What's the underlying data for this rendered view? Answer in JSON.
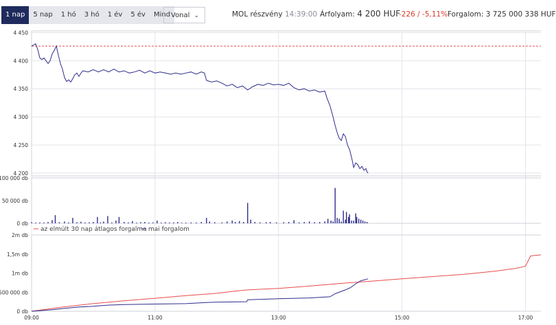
{
  "toolbar": {
    "tabs": [
      {
        "label": "1 nap",
        "active": true
      },
      {
        "label": "5 nap",
        "active": false
      },
      {
        "label": "1 hó",
        "active": false
      },
      {
        "label": "3 hó",
        "active": false
      },
      {
        "label": "1 év",
        "active": false
      },
      {
        "label": "5 év",
        "active": false
      },
      {
        "label": "Mind",
        "active": false
      }
    ],
    "chart_type_select": "Vonal",
    "stock_name": "MOL részvény",
    "time": "14:39:00",
    "price_label": "Árfolyam:",
    "price_value": "4 200 HUF",
    "change": "-226 / -5,11%",
    "volume_label": "Forgalom: 3 725 000 338 HUF"
  },
  "colors": {
    "line": "#2e2c8c",
    "ref": "#e84c4c",
    "grid": "#e3e4ea",
    "negative": "#d63b2a"
  },
  "chart_data": [
    {
      "type": "line",
      "panel": "price",
      "y_ticks": [
        "4 450",
        "4 400",
        "4 350",
        "4 300",
        "4 250",
        "4 200"
      ],
      "y_tick_values": [
        4450,
        4400,
        4350,
        4300,
        4250,
        4200
      ],
      "ylim": [
        4195,
        4453
      ],
      "reference_value": 4426,
      "x_range": [
        "09:00",
        "17:15"
      ],
      "series": [
        {
          "values": [
            [
              "09:00",
              4426
            ],
            [
              "09:02",
              4428
            ],
            [
              "09:04",
              4430
            ],
            [
              "09:06",
              4420
            ],
            [
              "09:08",
              4405
            ],
            [
              "09:10",
              4402
            ],
            [
              "09:12",
              4405
            ],
            [
              "09:14",
              4400
            ],
            [
              "09:16",
              4395
            ],
            [
              "09:18",
              4400
            ],
            [
              "09:20",
              4412
            ],
            [
              "09:22",
              4418
            ],
            [
              "09:24",
              4426
            ],
            [
              "09:26",
              4410
            ],
            [
              "09:28",
              4395
            ],
            [
              "09:30",
              4385
            ],
            [
              "09:32",
              4370
            ],
            [
              "09:34",
              4363
            ],
            [
              "09:36",
              4366
            ],
            [
              "09:38",
              4362
            ],
            [
              "09:40",
              4368
            ],
            [
              "09:42",
              4375
            ],
            [
              "09:44",
              4378
            ],
            [
              "09:46",
              4372
            ],
            [
              "09:48",
              4378
            ],
            [
              "09:50",
              4382
            ],
            [
              "09:55",
              4380
            ],
            [
              "10:00",
              4384
            ],
            [
              "10:05",
              4380
            ],
            [
              "10:10",
              4384
            ],
            [
              "10:15",
              4380
            ],
            [
              "10:20",
              4385
            ],
            [
              "10:25",
              4380
            ],
            [
              "10:30",
              4382
            ],
            [
              "10:35",
              4378
            ],
            [
              "10:40",
              4380
            ],
            [
              "10:45",
              4383
            ],
            [
              "10:50",
              4378
            ],
            [
              "10:55",
              4382
            ],
            [
              "11:00",
              4378
            ],
            [
              "11:05",
              4380
            ],
            [
              "11:10",
              4378
            ],
            [
              "11:15",
              4376
            ],
            [
              "11:20",
              4378
            ],
            [
              "11:25",
              4376
            ],
            [
              "11:30",
              4378
            ],
            [
              "11:35",
              4380
            ],
            [
              "11:40",
              4376
            ],
            [
              "11:45",
              4380
            ],
            [
              "11:48",
              4378
            ],
            [
              "11:50",
              4365
            ],
            [
              "11:55",
              4362
            ],
            [
              "12:00",
              4364
            ],
            [
              "12:05",
              4360
            ],
            [
              "12:10",
              4355
            ],
            [
              "12:15",
              4358
            ],
            [
              "12:20",
              4352
            ],
            [
              "12:25",
              4355
            ],
            [
              "12:30",
              4348
            ],
            [
              "12:35",
              4354
            ],
            [
              "12:40",
              4358
            ],
            [
              "12:45",
              4356
            ],
            [
              "12:50",
              4360
            ],
            [
              "12:55",
              4357
            ],
            [
              "13:00",
              4358
            ],
            [
              "13:05",
              4356
            ],
            [
              "13:10",
              4360
            ],
            [
              "13:15",
              4352
            ],
            [
              "13:20",
              4348
            ],
            [
              "13:25",
              4350
            ],
            [
              "13:30",
              4346
            ],
            [
              "13:35",
              4348
            ],
            [
              "13:40",
              4344
            ],
            [
              "13:45",
              4346
            ],
            [
              "13:47",
              4334
            ],
            [
              "13:50",
              4320
            ],
            [
              "13:53",
              4300
            ],
            [
              "13:55",
              4285
            ],
            [
              "13:57",
              4272
            ],
            [
              "13:59",
              4262
            ],
            [
              "14:01",
              4258
            ],
            [
              "14:03",
              4270
            ],
            [
              "14:05",
              4265
            ],
            [
              "14:07",
              4250
            ],
            [
              "14:09",
              4242
            ],
            [
              "14:11",
              4228
            ],
            [
              "14:13",
              4210
            ],
            [
              "14:15",
              4218
            ],
            [
              "14:17",
              4215
            ],
            [
              "14:19",
              4208
            ],
            [
              "14:21",
              4212
            ],
            [
              "14:23",
              4205
            ],
            [
              "14:25",
              4208
            ],
            [
              "14:26",
              4202
            ],
            [
              "14:27",
              4200
            ]
          ]
        }
      ]
    },
    {
      "type": "bar",
      "panel": "volume",
      "y_ticks": [
        "100 000 db",
        "50 000 db",
        "0 db"
      ],
      "y_tick_values": [
        100000,
        50000,
        0
      ],
      "ylim": [
        0,
        100000
      ],
      "series": [
        {
          "values": [
            [
              "09:00",
              2500
            ],
            [
              "09:04",
              1500
            ],
            [
              "09:08",
              2000
            ],
            [
              "09:12",
              1800
            ],
            [
              "09:16",
              3000
            ],
            [
              "09:20",
              7000
            ],
            [
              "09:23",
              18000
            ],
            [
              "09:27",
              2500
            ],
            [
              "09:32",
              4000
            ],
            [
              "09:36",
              2000
            ],
            [
              "09:40",
              12000
            ],
            [
              "09:44",
              2500
            ],
            [
              "09:48",
              3500
            ],
            [
              "09:52",
              1800
            ],
            [
              "09:56",
              2200
            ],
            [
              "10:00",
              3000
            ],
            [
              "10:04",
              14000
            ],
            [
              "10:07",
              2000
            ],
            [
              "10:10",
              4000
            ],
            [
              "10:14",
              16000
            ],
            [
              "10:18",
              2000
            ],
            [
              "10:22",
              6000
            ],
            [
              "10:25",
              14000
            ],
            [
              "10:30",
              3000
            ],
            [
              "10:34",
              2000
            ],
            [
              "10:38",
              5000
            ],
            [
              "10:42",
              1500
            ],
            [
              "10:46",
              2500
            ],
            [
              "10:50",
              3000
            ],
            [
              "10:54",
              1500
            ],
            [
              "10:58",
              2000
            ],
            [
              "11:02",
              6000
            ],
            [
              "11:06",
              1500
            ],
            [
              "11:10",
              2500
            ],
            [
              "11:14",
              1800
            ],
            [
              "11:18",
              2000
            ],
            [
              "11:22",
              3000
            ],
            [
              "11:26",
              1200
            ],
            [
              "11:30",
              1500
            ],
            [
              "11:35",
              2000
            ],
            [
              "11:40",
              1800
            ],
            [
              "11:45",
              3000
            ],
            [
              "11:50",
              12000
            ],
            [
              "11:53",
              4000
            ],
            [
              "11:58",
              2500
            ],
            [
              "12:05",
              2000
            ],
            [
              "12:10",
              4000
            ],
            [
              "12:15",
              6000
            ],
            [
              "12:18",
              3000
            ],
            [
              "12:22",
              5000
            ],
            [
              "12:26",
              3000
            ],
            [
              "12:30",
              45000
            ],
            [
              "12:33",
              8000
            ],
            [
              "12:37",
              3000
            ],
            [
              "12:42",
              2000
            ],
            [
              "12:48",
              2500
            ],
            [
              "12:52",
              3000
            ],
            [
              "12:58",
              2000
            ],
            [
              "13:05",
              2500
            ],
            [
              "13:10",
              3000
            ],
            [
              "13:15",
              7000
            ],
            [
              "13:20",
              2000
            ],
            [
              "13:25",
              3000
            ],
            [
              "13:30",
              4000
            ],
            [
              "13:35",
              2500
            ],
            [
              "13:40",
              3000
            ],
            [
              "13:45",
              4000
            ],
            [
              "13:48",
              10000
            ],
            [
              "13:51",
              6000
            ],
            [
              "13:53",
              4000
            ],
            [
              "13:55",
              78000
            ],
            [
              "13:57",
              12000
            ],
            [
              "13:59",
              10000
            ],
            [
              "14:01",
              4000
            ],
            [
              "14:03",
              28000
            ],
            [
              "14:05",
              8000
            ],
            [
              "14:06",
              25000
            ],
            [
              "14:08",
              14000
            ],
            [
              "14:09",
              20000
            ],
            [
              "14:11",
              6000
            ],
            [
              "14:13",
              6000
            ],
            [
              "14:15",
              22000
            ],
            [
              "14:16",
              14000
            ],
            [
              "14:18",
              10000
            ],
            [
              "14:20",
              8000
            ],
            [
              "14:22",
              6000
            ],
            [
              "14:24",
              4000
            ],
            [
              "14:26",
              3000
            ]
          ]
        }
      ]
    },
    {
      "type": "line",
      "panel": "cumulative",
      "y_ticks": [
        "2m db",
        "1,5m db",
        "1m db",
        "500 000 db",
        "0 db"
      ],
      "y_tick_values": [
        2000000,
        1500000,
        1000000,
        500000,
        0
      ],
      "ylim": [
        0,
        2000000
      ],
      "x_ticks": [
        "09:00",
        "11:00",
        "13:00",
        "15:00",
        "17:00"
      ],
      "legend": [
        "az elmúlt 30 nap átlagos forgalma",
        "mai forgalom"
      ],
      "series": [
        {
          "name": "az elmúlt 30 nap átlagos forgalma",
          "values": [
            [
              "09:00",
              0
            ],
            [
              "09:30",
              110000
            ],
            [
              "10:00",
              200000
            ],
            [
              "10:30",
              275000
            ],
            [
              "11:00",
              340000
            ],
            [
              "11:30",
              410000
            ],
            [
              "12:00",
              470000
            ],
            [
              "12:15",
              520000
            ],
            [
              "12:30",
              560000
            ],
            [
              "13:00",
              600000
            ],
            [
              "13:30",
              660000
            ],
            [
              "14:00",
              730000
            ],
            [
              "14:30",
              790000
            ],
            [
              "15:00",
              850000
            ],
            [
              "15:30",
              910000
            ],
            [
              "16:00",
              970000
            ],
            [
              "16:30",
              1050000
            ],
            [
              "16:50",
              1120000
            ],
            [
              "17:00",
              1180000
            ],
            [
              "17:05",
              1450000
            ],
            [
              "17:15",
              1480000
            ]
          ]
        },
        {
          "name": "mai forgalom",
          "values": [
            [
              "09:00",
              0
            ],
            [
              "09:20",
              40000
            ],
            [
              "09:30",
              70000
            ],
            [
              "09:45",
              110000
            ],
            [
              "10:00",
              130000
            ],
            [
              "10:14",
              160000
            ],
            [
              "10:30",
              175000
            ],
            [
              "11:00",
              190000
            ],
            [
              "11:30",
              200000
            ],
            [
              "11:50",
              230000
            ],
            [
              "12:00",
              240000
            ],
            [
              "12:29",
              250000
            ],
            [
              "12:30",
              300000
            ],
            [
              "12:40",
              310000
            ],
            [
              "13:00",
              330000
            ],
            [
              "13:30",
              350000
            ],
            [
              "13:50",
              380000
            ],
            [
              "13:55",
              460000
            ],
            [
              "14:05",
              560000
            ],
            [
              "14:10",
              620000
            ],
            [
              "14:15",
              720000
            ],
            [
              "14:20",
              800000
            ],
            [
              "14:27",
              850000
            ]
          ]
        }
      ]
    }
  ]
}
